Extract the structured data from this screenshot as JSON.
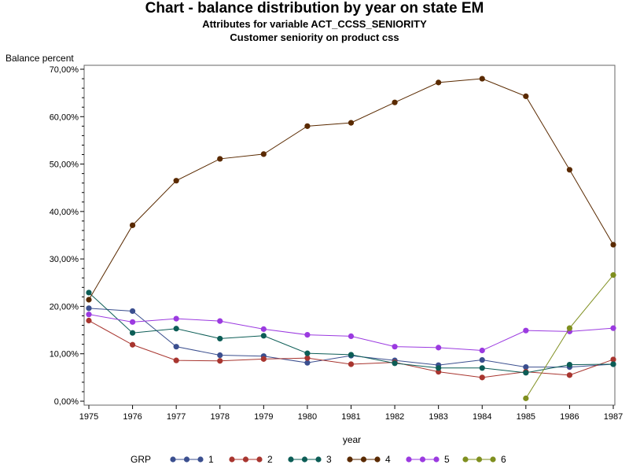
{
  "chart_data": {
    "type": "line",
    "title": "Chart - balance distribution by year on state EM",
    "subtitle": "Attributes for variable ACT_CCSS_SENIORITY",
    "subtitle2": "Customer seniority on product css",
    "ylabel": "Balance percent",
    "xlabel": "year",
    "ylim": [
      0,
      0.7
    ],
    "yticks": [
      "0,00%",
      "10,00%",
      "20,00%",
      "30,00%",
      "40,00%",
      "50,00%",
      "60,00%",
      "70,00%"
    ],
    "x": [
      1975,
      1976,
      1977,
      1978,
      1979,
      1980,
      1981,
      1982,
      1983,
      1984,
      1985,
      1986,
      1987
    ],
    "legend_title": "GRP",
    "legend_position": "bottom",
    "grid": false,
    "series": [
      {
        "name": "1",
        "color": "#3b4f8f",
        "values": [
          0.196,
          0.19,
          0.115,
          0.097,
          0.095,
          0.081,
          0.096,
          0.086,
          0.076,
          0.087,
          0.072,
          0.072,
          0.078
        ]
      },
      {
        "name": "2",
        "color": "#a8352f",
        "values": [
          0.17,
          0.119,
          0.086,
          0.085,
          0.089,
          0.091,
          0.078,
          0.082,
          0.062,
          0.05,
          0.062,
          0.055,
          0.088
        ]
      },
      {
        "name": "3",
        "color": "#0c5d56",
        "values": [
          0.229,
          0.144,
          0.153,
          0.132,
          0.138,
          0.101,
          0.098,
          0.08,
          0.07,
          0.07,
          0.06,
          0.077,
          0.078
        ]
      },
      {
        "name": "4",
        "color": "#5a2a00",
        "values": [
          0.214,
          0.371,
          0.465,
          0.511,
          0.521,
          0.58,
          0.587,
          0.63,
          0.672,
          0.68,
          0.643,
          0.488,
          0.33
        ]
      },
      {
        "name": "5",
        "color": "#9b3ae0",
        "values": [
          0.183,
          0.167,
          0.174,
          0.169,
          0.152,
          0.14,
          0.137,
          0.115,
          0.113,
          0.107,
          0.149,
          0.147,
          0.154
        ]
      },
      {
        "name": "6",
        "color": "#7f8f1f",
        "values": [
          null,
          null,
          null,
          null,
          null,
          null,
          null,
          null,
          null,
          null,
          0.006,
          0.154,
          0.266
        ]
      }
    ]
  }
}
